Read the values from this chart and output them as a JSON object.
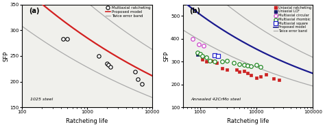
{
  "panel_a": {
    "title": "1025 steel",
    "label": "(a)",
    "xlim": [
      100,
      10000
    ],
    "ylim": [
      150,
      350
    ],
    "xlabel": "Ratcheting life",
    "ylabel": "SFP",
    "xticks": [
      100,
      1000,
      10000
    ],
    "yticks": [
      150,
      200,
      250,
      300,
      350
    ],
    "multiaxial_ratcheting": {
      "x": [
        430,
        500,
        1500,
        2000,
        2100,
        2300,
        5500,
        6000,
        7000
      ],
      "y": [
        283,
        283,
        250,
        235,
        233,
        229,
        219,
        205,
        195
      ],
      "facecolor": "white",
      "edgecolor": "black",
      "marker": "o",
      "s": 15,
      "linewidths": 0.8,
      "label": "Multiaxial ratcheting"
    },
    "proposed_model": {
      "color": "#d32020",
      "linewidth": 1.6,
      "label": "Proposed model",
      "A": 700.0,
      "b": -0.13
    },
    "error_band": {
      "upper_A": 870.0,
      "upper_b": -0.13,
      "lower_A": 560.0,
      "lower_b": -0.13,
      "color": "#aaaaaa",
      "linewidth": 0.9,
      "label": "Twice error band"
    }
  },
  "panel_b": {
    "title": "Annealed 42CrMo steel",
    "label": "(b)",
    "xlim": [
      500,
      100000
    ],
    "ylim": [
      100,
      550
    ],
    "xlabel": "Ratcheting life",
    "ylabel": "SFP",
    "xticks": [
      1000,
      10000,
      100000
    ],
    "yticks": [
      100,
      200,
      300,
      400,
      500
    ],
    "uniaxial_ratcheting": {
      "x": [
        1100,
        1300,
        1600,
        2000,
        2500,
        3000,
        4500,
        5000,
        6000,
        7000,
        8000,
        10000,
        12000,
        15000,
        20000,
        25000
      ],
      "y": [
        310,
        300,
        305,
        295,
        270,
        265,
        265,
        255,
        260,
        250,
        240,
        230,
        235,
        245,
        225,
        220
      ],
      "facecolor": "#cc2222",
      "edgecolor": "#cc2222",
      "marker": "s",
      "s": 10,
      "linewidths": 0.5,
      "label": "Uniaxial ratcheting"
    },
    "uniaxial_lcf": {
      "x": [
        900,
        1100
      ],
      "y": [
        330,
        325
      ],
      "facecolor": "#1a1a6e",
      "edgecolor": "#1a1a6e",
      "marker": "s",
      "s": 10,
      "linewidths": 0.5,
      "label": "Uniaxial LCF"
    },
    "multiaxial_circular": {
      "x": [
        750,
        950,
        1150
      ],
      "y": [
        400,
        375,
        370
      ],
      "facecolor": "white",
      "edgecolor": "#cc44cc",
      "marker": "o",
      "s": 16,
      "linewidths": 0.9,
      "label": "Multiaxial circular"
    },
    "multiaxial_rhombic": {
      "x": [
        900,
        1000,
        1100,
        1300,
        1500,
        1800,
        2500,
        3000,
        4000,
        5000,
        6000,
        7000,
        8000,
        10000,
        12000
      ],
      "y": [
        340,
        335,
        325,
        320,
        305,
        300,
        300,
        305,
        295,
        290,
        285,
        283,
        280,
        285,
        278
      ],
      "facecolor": "white",
      "edgecolor": "#228822",
      "marker": "o",
      "s": 16,
      "linewidths": 0.9,
      "label": "Multiaxial rhombic"
    },
    "multiaxial_square": {
      "x": [
        1800,
        2100
      ],
      "y": [
        328,
        325
      ],
      "facecolor": "white",
      "edgecolor": "#2222cc",
      "marker": "s",
      "s": 16,
      "linewidths": 0.9,
      "label": "Multiaxial square"
    },
    "proposed_model": {
      "color": "#1a1a8e",
      "linewidth": 1.6,
      "label": "Proposed model",
      "A": 1480.0,
      "b": -0.155
    },
    "error_band": {
      "upper_A": 1900.0,
      "upper_b": -0.155,
      "lower_A": 1150.0,
      "lower_b": -0.155,
      "color": "#aaaaaa",
      "linewidth": 0.9,
      "label": "Twice error band"
    }
  },
  "bg_color": "#f0f0ec",
  "fig_bg": "white"
}
